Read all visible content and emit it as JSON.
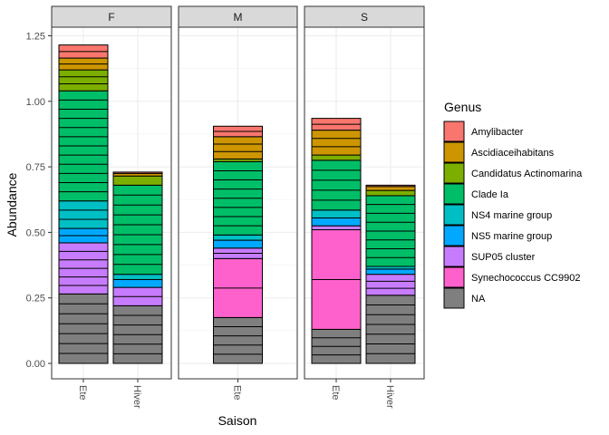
{
  "chart_data": {
    "type": "bar",
    "stacked": true,
    "xlabel": "Saison",
    "ylabel": "Abundance",
    "ylim": [
      0,
      1.3
    ],
    "yticks": [
      "0.00",
      "0.25",
      "0.50",
      "0.75",
      "1.00",
      "1.25"
    ],
    "grid": true,
    "legend_position": "right",
    "legend_title": "Genus",
    "legend": [
      {
        "name": "Amylibacter",
        "color": "#F8766D"
      },
      {
        "name": "Ascidiaceihabitans",
        "color": "#CD9600"
      },
      {
        "name": "Candidatus Actinomarina",
        "color": "#7CAE00"
      },
      {
        "name": "Clade Ia",
        "color": "#00BE67"
      },
      {
        "name": "NS4 marine group",
        "color": "#00BFC4"
      },
      {
        "name": "NS5 marine group",
        "color": "#00A9FF"
      },
      {
        "name": "SUP05 cluster",
        "color": "#C77CFF"
      },
      {
        "name": "Synechococcus CC9902",
        "color": "#FF61CC"
      },
      {
        "name": "NA",
        "color": "#7F7F7F"
      }
    ],
    "facets": [
      {
        "label": "F",
        "bars": [
          {
            "category": "Ete",
            "values": {
              "NA": 0.265,
              "SUP05 cluster": 0.195,
              "NS5 marine group": 0.055,
              "NS4 marine group": 0.105,
              "Clade Ia": 0.42,
              "Candidatus Actinomarina": 0.08,
              "Ascidiaceihabitans": 0.045,
              "Amylibacter": 0.05
            }
          },
          {
            "category": "Hiver",
            "values": {
              "NA": 0.22,
              "SUP05 cluster": 0.07,
              "NS5 marine group": 0.03,
              "NS4 marine group": 0.02,
              "Clade Ia": 0.34,
              "Candidatus Actinomarina": 0.035,
              "Ascidiaceihabitans": 0.01,
              "Amylibacter": 0.005
            }
          }
        ]
      },
      {
        "label": "M",
        "bars": [
          {
            "category": "Ete",
            "values": {
              "NA": 0.175,
              "Synechococcus CC9902": 0.225,
              "SUP05 cluster": 0.04,
              "NS5 marine group": 0.03,
              "NS4 marine group": 0.02,
              "Clade Ia": 0.28,
              "Candidatus Actinomarina": 0.01,
              "Ascidiaceihabitans": 0.085,
              "Amylibacter": 0.04
            }
          }
        ]
      },
      {
        "label": "S",
        "bars": [
          {
            "category": "Ete",
            "values": {
              "NA": 0.13,
              "Synechococcus CC9902": 0.38,
              "SUP05 cluster": 0.015,
              "NS5 marine group": 0.03,
              "NS4 marine group": 0.03,
              "Clade Ia": 0.19,
              "Candidatus Actinomarina": 0.02,
              "Ascidiaceihabitans": 0.095,
              "Amylibacter": 0.045
            }
          },
          {
            "category": "Hiver",
            "values": {
              "NA": 0.26,
              "SUP05 cluster": 0.08,
              "NS5 marine group": 0.02,
              "NS4 marine group": 0.01,
              "Clade Ia": 0.27,
              "Candidatus Actinomarina": 0.02,
              "Ascidiaceihabitans": 0.015,
              "Amylibacter": 0.005
            }
          }
        ]
      }
    ]
  }
}
